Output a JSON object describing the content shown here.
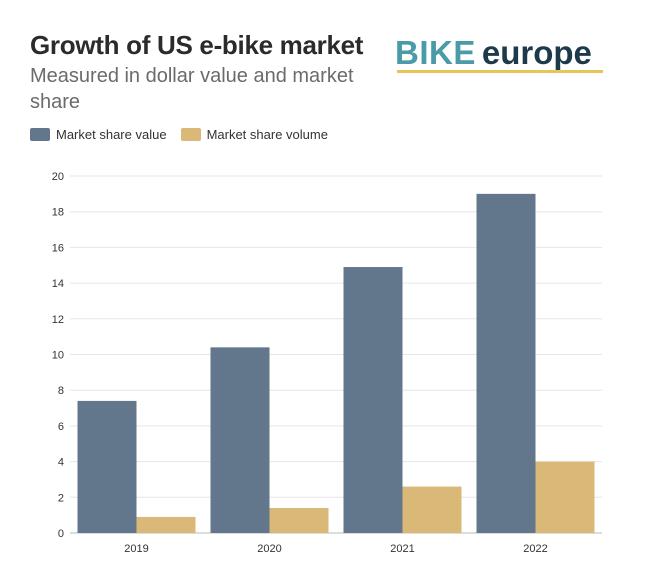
{
  "title": "Growth of US e-bike market",
  "subtitle": "Measured in dollar value and market share",
  "logo": {
    "part1": "BIKE",
    "part2": "europe",
    "color1": "#4a9aa8",
    "color2": "#1d3a4a",
    "underline_color": "#e9c45a"
  },
  "chart_data": {
    "type": "bar",
    "categories": [
      "2019",
      "2020",
      "2021",
      "2022"
    ],
    "series": [
      {
        "name": "Market share value",
        "values": [
          7.4,
          10.4,
          14.9,
          19.0
        ],
        "color": "#62778c"
      },
      {
        "name": "Market share volume",
        "values": [
          0.9,
          1.4,
          2.6,
          4.0
        ],
        "color": "#dab878"
      }
    ],
    "ylim": [
      0,
      20
    ],
    "yticks": [
      "0",
      "2",
      "4",
      "6",
      "8",
      "10",
      "12",
      "14",
      "16",
      "18",
      "20"
    ],
    "grid": true,
    "legend_position": "top-left",
    "title": "Growth of US e-bike market",
    "xlabel": "",
    "ylabel": ""
  }
}
